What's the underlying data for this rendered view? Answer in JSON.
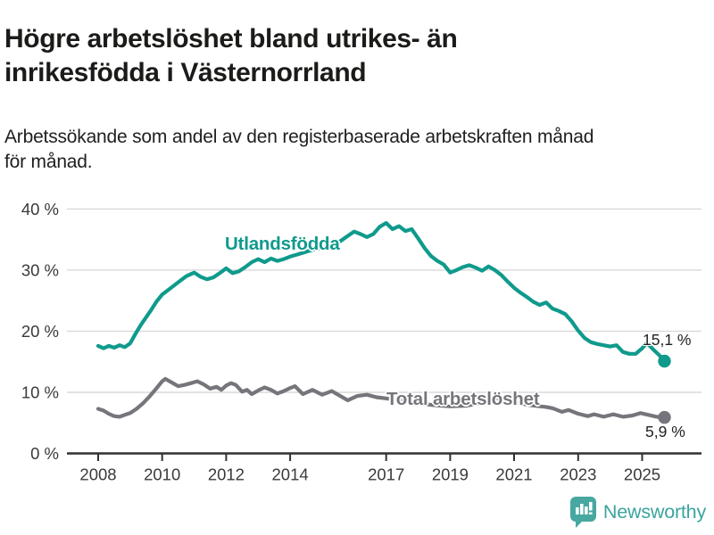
{
  "header": {
    "title_lines": [
      "Högre arbetslöshet bland utrikes- än",
      "inrikesfödda i Västernorrland"
    ],
    "subtitle_lines": [
      "Arbetssökande som andel av den registerbaserade arbetskraften månad",
      "för månad."
    ]
  },
  "chart_data": {
    "type": "line",
    "title": "Högre arbetslöshet bland utrikes- än inrikesfödda i Västernorrland",
    "subtitle": "Arbetssökande som andel av den registerbaserade arbetskraften månad för månad.",
    "unit": "%",
    "grid": "horizontal-only",
    "legend_position": "inline-labels-on-lines",
    "xlim": [
      2007.1,
      2026.3
    ],
    "ylim": [
      0,
      42
    ],
    "x_ticks": [
      2008,
      2010,
      2012,
      2014,
      2017,
      2019,
      2021,
      2023,
      2025
    ],
    "y_axis": {
      "ticks": [
        {
          "value": 40,
          "label": "40 %"
        },
        {
          "value": 30,
          "label": "30 %"
        },
        {
          "value": 20,
          "label": "20 %"
        },
        {
          "value": 10,
          "label": "10 %"
        },
        {
          "value": 0,
          "label": "0 %"
        }
      ]
    },
    "series": [
      {
        "name": "Utlandsfödda",
        "color": "#0f9a8c",
        "end_label": "15,1 %",
        "final_value": 15.1,
        "points": [
          [
            2008.0,
            17.6
          ],
          [
            2008.17,
            17.2
          ],
          [
            2008.33,
            17.6
          ],
          [
            2008.5,
            17.3
          ],
          [
            2008.67,
            17.7
          ],
          [
            2008.83,
            17.4
          ],
          [
            2009.0,
            18.0
          ],
          [
            2009.17,
            19.6
          ],
          [
            2009.33,
            21.0
          ],
          [
            2009.5,
            22.3
          ],
          [
            2009.67,
            23.6
          ],
          [
            2009.83,
            24.9
          ],
          [
            2010.0,
            26.0
          ],
          [
            2010.25,
            27.0
          ],
          [
            2010.5,
            28.0
          ],
          [
            2010.75,
            29.0
          ],
          [
            2011.0,
            29.6
          ],
          [
            2011.2,
            28.9
          ],
          [
            2011.4,
            28.5
          ],
          [
            2011.6,
            28.8
          ],
          [
            2011.8,
            29.5
          ],
          [
            2012.0,
            30.3
          ],
          [
            2012.2,
            29.5
          ],
          [
            2012.4,
            29.8
          ],
          [
            2012.6,
            30.5
          ],
          [
            2012.8,
            31.3
          ],
          [
            2013.0,
            31.8
          ],
          [
            2013.2,
            31.3
          ],
          [
            2013.4,
            31.9
          ],
          [
            2013.6,
            31.5
          ],
          [
            2013.8,
            31.8
          ],
          [
            2014.0,
            32.2
          ],
          [
            2014.25,
            32.6
          ],
          [
            2014.5,
            33.0
          ],
          [
            2014.75,
            33.4
          ],
          [
            2015.0,
            33.7
          ],
          [
            2015.25,
            34.1
          ],
          [
            2015.5,
            34.5
          ],
          [
            2015.75,
            35.4
          ],
          [
            2016.0,
            36.3
          ],
          [
            2016.2,
            35.9
          ],
          [
            2016.4,
            35.4
          ],
          [
            2016.6,
            35.9
          ],
          [
            2016.8,
            37.1
          ],
          [
            2017.0,
            37.7
          ],
          [
            2017.2,
            36.7
          ],
          [
            2017.4,
            37.2
          ],
          [
            2017.6,
            36.4
          ],
          [
            2017.8,
            36.7
          ],
          [
            2018.0,
            35.2
          ],
          [
            2018.2,
            33.6
          ],
          [
            2018.4,
            32.3
          ],
          [
            2018.6,
            31.5
          ],
          [
            2018.8,
            30.9
          ],
          [
            2019.0,
            29.6
          ],
          [
            2019.2,
            30.0
          ],
          [
            2019.4,
            30.5
          ],
          [
            2019.6,
            30.8
          ],
          [
            2019.8,
            30.4
          ],
          [
            2020.0,
            29.9
          ],
          [
            2020.2,
            30.6
          ],
          [
            2020.4,
            30.0
          ],
          [
            2020.6,
            29.2
          ],
          [
            2020.8,
            28.1
          ],
          [
            2021.0,
            27.1
          ],
          [
            2021.2,
            26.3
          ],
          [
            2021.4,
            25.6
          ],
          [
            2021.6,
            24.8
          ],
          [
            2021.8,
            24.3
          ],
          [
            2022.0,
            24.7
          ],
          [
            2022.2,
            23.7
          ],
          [
            2022.4,
            23.3
          ],
          [
            2022.6,
            22.8
          ],
          [
            2022.8,
            21.6
          ],
          [
            2023.0,
            20.1
          ],
          [
            2023.2,
            18.9
          ],
          [
            2023.4,
            18.2
          ],
          [
            2023.6,
            17.9
          ],
          [
            2023.8,
            17.7
          ],
          [
            2024.0,
            17.5
          ],
          [
            2024.2,
            17.7
          ],
          [
            2024.4,
            16.6
          ],
          [
            2024.6,
            16.3
          ],
          [
            2024.8,
            16.3
          ],
          [
            2025.0,
            17.2
          ],
          [
            2025.15,
            18.1
          ],
          [
            2025.35,
            17.0
          ],
          [
            2025.55,
            16.0
          ],
          [
            2025.7,
            15.1
          ]
        ]
      },
      {
        "name": "Total arbetslöshet",
        "color": "#75757b",
        "end_label": "5,9 %",
        "final_value": 5.9,
        "points": [
          [
            2008.0,
            7.3
          ],
          [
            2008.17,
            7.0
          ],
          [
            2008.33,
            6.5
          ],
          [
            2008.5,
            6.1
          ],
          [
            2008.67,
            6.0
          ],
          [
            2008.83,
            6.3
          ],
          [
            2009.0,
            6.6
          ],
          [
            2009.2,
            7.3
          ],
          [
            2009.4,
            8.2
          ],
          [
            2009.6,
            9.3
          ],
          [
            2009.8,
            10.5
          ],
          [
            2010.0,
            11.8
          ],
          [
            2010.1,
            12.2
          ],
          [
            2010.3,
            11.6
          ],
          [
            2010.5,
            11.0
          ],
          [
            2010.7,
            11.2
          ],
          [
            2010.9,
            11.5
          ],
          [
            2011.1,
            11.8
          ],
          [
            2011.3,
            11.3
          ],
          [
            2011.5,
            10.6
          ],
          [
            2011.7,
            10.9
          ],
          [
            2011.85,
            10.4
          ],
          [
            2012.0,
            11.1
          ],
          [
            2012.15,
            11.5
          ],
          [
            2012.3,
            11.2
          ],
          [
            2012.5,
            10.1
          ],
          [
            2012.65,
            10.4
          ],
          [
            2012.8,
            9.7
          ],
          [
            2013.0,
            10.3
          ],
          [
            2013.2,
            10.8
          ],
          [
            2013.4,
            10.4
          ],
          [
            2013.6,
            9.8
          ],
          [
            2013.8,
            10.2
          ],
          [
            2014.0,
            10.7
          ],
          [
            2014.15,
            11.0
          ],
          [
            2014.4,
            9.7
          ],
          [
            2014.7,
            10.4
          ],
          [
            2015.0,
            9.6
          ],
          [
            2015.3,
            10.2
          ],
          [
            2015.6,
            9.3
          ],
          [
            2015.8,
            8.7
          ],
          [
            2016.1,
            9.4
          ],
          [
            2016.4,
            9.6
          ],
          [
            2016.7,
            9.2
          ],
          [
            2017.0,
            9.0
          ],
          [
            2017.5,
            8.6
          ],
          [
            2018.0,
            8.2
          ],
          [
            2018.5,
            7.9
          ],
          [
            2019.0,
            7.7
          ],
          [
            2019.5,
            7.8
          ],
          [
            2020.0,
            8.3
          ],
          [
            2020.3,
            9.1
          ],
          [
            2020.7,
            8.8
          ],
          [
            2021.0,
            8.4
          ],
          [
            2021.5,
            7.9
          ],
          [
            2022.0,
            7.6
          ],
          [
            2022.2,
            7.4
          ],
          [
            2022.5,
            6.8
          ],
          [
            2022.7,
            7.1
          ],
          [
            2023.0,
            6.5
          ],
          [
            2023.3,
            6.1
          ],
          [
            2023.5,
            6.4
          ],
          [
            2023.8,
            6.0
          ],
          [
            2024.1,
            6.4
          ],
          [
            2024.4,
            6.0
          ],
          [
            2024.7,
            6.2
          ],
          [
            2024.95,
            6.6
          ],
          [
            2025.2,
            6.3
          ],
          [
            2025.45,
            6.0
          ],
          [
            2025.7,
            5.9
          ]
        ]
      }
    ]
  },
  "footer": {
    "brand": "Newsworthy",
    "brand_color": "#3ba49d",
    "logo_color": "#47a8a1"
  },
  "colors": {
    "title": "#1b1b19",
    "axis_text": "#3a3a3a",
    "gridline": "#d9d9d9",
    "axis_line": "#303030"
  }
}
